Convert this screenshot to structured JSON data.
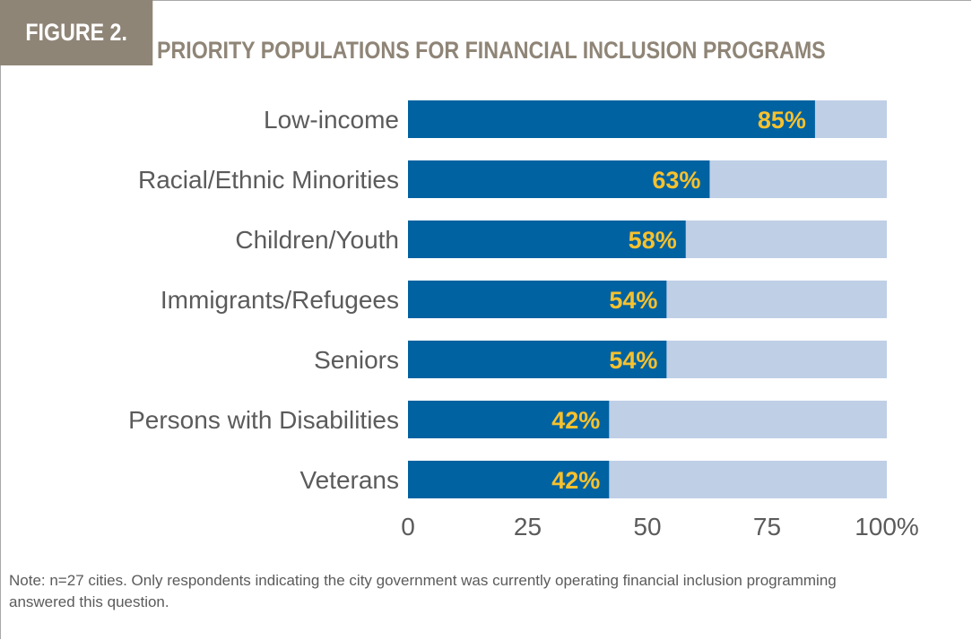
{
  "figure": {
    "tag": "FIGURE 2.",
    "title": "PRIORITY POPULATIONS FOR FINANCIAL INCLUSION PROGRAMS",
    "note": "Note: n=27 cities. Only respondents indicating the city government was currently operating financial inclusion programming answered this question."
  },
  "colors": {
    "bar": "#0162a1",
    "track": "#bfcfe6",
    "value_label": "#f6c12e",
    "category_label": "#5b5b5b",
    "tag_bg": "#8f8577",
    "title": "#8f8577"
  },
  "chart_data": {
    "type": "bar",
    "orientation": "horizontal",
    "title": "PRIORITY POPULATIONS FOR FINANCIAL INCLUSION PROGRAMS",
    "categories": [
      "Low-income",
      "Racial/Ethnic Minorities",
      "Children/Youth",
      "Immigrants/Refugees",
      "Seniors",
      "Persons with Disabilities",
      "Veterans"
    ],
    "values": [
      85,
      63,
      58,
      54,
      54,
      42,
      42
    ],
    "value_labels": [
      "85%",
      "63%",
      "58%",
      "54%",
      "54%",
      "42%",
      "42%"
    ],
    "xlim": [
      0,
      100
    ],
    "x_ticks": [
      0,
      25,
      50,
      75,
      100
    ],
    "x_tick_labels": [
      "0",
      "25",
      "50",
      "75",
      "100%"
    ],
    "grid": false,
    "legend": "none"
  }
}
